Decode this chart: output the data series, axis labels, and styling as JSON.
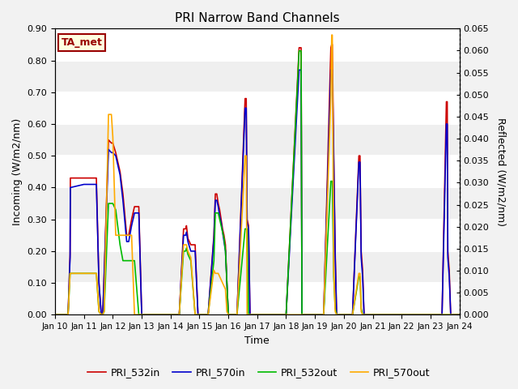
{
  "title": "PRI Narrow Band Channels",
  "xlabel": "Time",
  "ylabel_left": "Incoming (W/m2/nm)",
  "ylabel_right": "Reflected (W/m2/nm)",
  "annotation": "TA_met",
  "ylim_left": [
    0.0,
    0.9
  ],
  "ylim_right": [
    0.0,
    0.065
  ],
  "yticks_left": [
    0.0,
    0.1,
    0.2,
    0.3,
    0.4,
    0.5,
    0.6,
    0.7,
    0.8,
    0.9
  ],
  "yticks_right": [
    0.0,
    0.005,
    0.01,
    0.015,
    0.02,
    0.025,
    0.03,
    0.035,
    0.04,
    0.045,
    0.05,
    0.055,
    0.06,
    0.065
  ],
  "xtick_labels": [
    "Jan 10",
    "Jan 11",
    "Jan 12",
    "Jan 13",
    "Jan 14",
    "Jan 15",
    "Jan 16",
    "Jan 17",
    "Jan 18",
    "Jan 19",
    "Jan 20",
    "Jan 21",
    "Jan 22",
    "Jan 23",
    "Jan 24"
  ],
  "colors": {
    "PRI_532in": "#cc0000",
    "PRI_570in": "#0000cc",
    "PRI_532out": "#00bb00",
    "PRI_570out": "#ffaa00"
  },
  "fig_bg": "#f2f2f2",
  "ax_bg": "#e8e8e8",
  "band_light": "#efefef",
  "band_dark": "#dcdcdc",
  "grid_color": "#ffffff",
  "series": {
    "PRI_532in": {
      "x": [
        0.0,
        0.45,
        0.52,
        0.53,
        1.0,
        1.43,
        1.52,
        1.6,
        1.65,
        1.7,
        1.85,
        1.95,
        2.0,
        2.1,
        2.25,
        2.35,
        2.48,
        2.55,
        2.65,
        2.75,
        2.9,
        3.0,
        3.5,
        4.0,
        4.3,
        4.45,
        4.52,
        4.55,
        4.6,
        4.7,
        4.85,
        4.95,
        5.0,
        5.3,
        5.5,
        5.55,
        5.6,
        5.65,
        5.7,
        5.75,
        5.8,
        5.85,
        5.9,
        5.95,
        6.0,
        6.3,
        6.58,
        6.62,
        6.65,
        6.7,
        6.75,
        7.0,
        7.5,
        8.0,
        8.45,
        8.52,
        8.55,
        8.6,
        8.7,
        9.0,
        9.3,
        9.55,
        9.58,
        9.6,
        9.65,
        9.7,
        9.75,
        9.9,
        10.0,
        10.3,
        10.52,
        10.56,
        10.6,
        10.65,
        10.7,
        10.85,
        11.0,
        11.5,
        12.0,
        12.5,
        13.0,
        13.4,
        13.55,
        13.58,
        13.6,
        13.65,
        13.7,
        14.0
      ],
      "y": [
        0.0,
        0.0,
        0.19,
        0.43,
        0.43,
        0.43,
        0.1,
        0.0,
        0.0,
        0.13,
        0.55,
        0.54,
        0.54,
        0.51,
        0.45,
        0.38,
        0.25,
        0.25,
        0.3,
        0.34,
        0.34,
        0.0,
        0.0,
        0.0,
        0.0,
        0.27,
        0.27,
        0.28,
        0.24,
        0.22,
        0.22,
        0.0,
        0.0,
        0.0,
        0.25,
        0.38,
        0.38,
        0.35,
        0.33,
        0.3,
        0.27,
        0.25,
        0.22,
        0.1,
        0.0,
        0.0,
        0.68,
        0.68,
        0.3,
        0.28,
        0.0,
        0.0,
        0.0,
        0.0,
        0.84,
        0.84,
        0.0,
        0.0,
        0.0,
        0.0,
        0.0,
        0.84,
        0.85,
        0.85,
        0.5,
        0.2,
        0.0,
        0.0,
        0.0,
        0.0,
        0.5,
        0.5,
        0.2,
        0.14,
        0.0,
        0.0,
        0.0,
        0.0,
        0.0,
        0.0,
        0.0,
        0.0,
        0.67,
        0.67,
        0.2,
        0.14,
        0.0,
        0.0
      ]
    },
    "PRI_570in": {
      "x": [
        0.0,
        0.45,
        0.52,
        0.53,
        1.0,
        1.43,
        1.52,
        1.6,
        1.65,
        1.7,
        1.85,
        1.95,
        2.0,
        2.1,
        2.25,
        2.35,
        2.48,
        2.55,
        2.65,
        2.75,
        2.9,
        3.0,
        3.5,
        4.0,
        4.3,
        4.45,
        4.52,
        4.55,
        4.6,
        4.7,
        4.85,
        4.95,
        5.0,
        5.3,
        5.5,
        5.55,
        5.6,
        5.65,
        5.7,
        5.75,
        5.8,
        5.85,
        5.9,
        5.95,
        6.0,
        6.3,
        6.58,
        6.62,
        6.65,
        6.7,
        6.75,
        7.0,
        7.5,
        8.0,
        8.45,
        8.52,
        8.55,
        8.6,
        8.7,
        9.0,
        9.3,
        9.55,
        9.58,
        9.6,
        9.65,
        9.7,
        9.75,
        9.9,
        10.0,
        10.3,
        10.52,
        10.56,
        10.6,
        10.65,
        10.7,
        10.85,
        11.0,
        11.5,
        12.0,
        12.5,
        13.0,
        13.4,
        13.55,
        13.58,
        13.6,
        13.65,
        13.7,
        14.0
      ],
      "y": [
        0.0,
        0.0,
        0.18,
        0.4,
        0.41,
        0.41,
        0.1,
        0.0,
        0.0,
        0.12,
        0.52,
        0.51,
        0.51,
        0.5,
        0.44,
        0.36,
        0.23,
        0.23,
        0.28,
        0.32,
        0.32,
        0.0,
        0.0,
        0.0,
        0.0,
        0.25,
        0.25,
        0.26,
        0.23,
        0.2,
        0.2,
        0.0,
        0.0,
        0.0,
        0.24,
        0.36,
        0.36,
        0.34,
        0.31,
        0.29,
        0.26,
        0.23,
        0.2,
        0.1,
        0.0,
        0.0,
        0.65,
        0.65,
        0.29,
        0.27,
        0.0,
        0.0,
        0.0,
        0.0,
        0.77,
        0.77,
        0.0,
        0.0,
        0.0,
        0.0,
        0.0,
        0.77,
        0.77,
        0.77,
        0.48,
        0.18,
        0.0,
        0.0,
        0.0,
        0.0,
        0.48,
        0.48,
        0.18,
        0.12,
        0.0,
        0.0,
        0.0,
        0.0,
        0.0,
        0.0,
        0.0,
        0.0,
        0.6,
        0.6,
        0.18,
        0.12,
        0.0,
        0.0
      ]
    },
    "PRI_532out": {
      "x": [
        0.0,
        0.45,
        0.52,
        0.53,
        1.0,
        1.43,
        1.52,
        1.6,
        1.65,
        1.7,
        1.85,
        1.95,
        2.0,
        2.1,
        2.25,
        2.35,
        2.48,
        2.55,
        2.65,
        2.75,
        2.9,
        3.0,
        3.5,
        4.0,
        4.3,
        4.45,
        4.52,
        4.55,
        4.6,
        4.7,
        4.85,
        4.95,
        5.0,
        5.3,
        5.5,
        5.55,
        5.6,
        5.65,
        5.7,
        5.75,
        5.8,
        5.85,
        5.9,
        5.95,
        6.0,
        6.3,
        6.58,
        6.62,
        6.65,
        6.7,
        6.75,
        7.0,
        7.5,
        8.0,
        8.45,
        8.52,
        8.55,
        8.6,
        8.7,
        9.0,
        9.3,
        9.55,
        9.58,
        9.6,
        9.65,
        9.7,
        9.75,
        9.9,
        10.0,
        10.3,
        10.52,
        10.56,
        10.6,
        10.65,
        10.7,
        10.85,
        11.0,
        11.5,
        12.0,
        12.5,
        13.0,
        13.4,
        13.55,
        13.58,
        13.6,
        13.65,
        13.7,
        14.0
      ],
      "y": [
        0.0,
        0.0,
        0.13,
        0.13,
        0.13,
        0.13,
        0.01,
        0.0,
        0.0,
        0.01,
        0.35,
        0.35,
        0.35,
        0.33,
        0.22,
        0.17,
        0.17,
        0.17,
        0.17,
        0.17,
        0.0,
        0.0,
        0.0,
        0.0,
        0.0,
        0.2,
        0.2,
        0.21,
        0.19,
        0.17,
        0.0,
        0.0,
        0.0,
        0.0,
        0.17,
        0.32,
        0.32,
        0.32,
        0.3,
        0.28,
        0.26,
        0.24,
        0.2,
        0.1,
        0.0,
        0.0,
        0.27,
        0.27,
        0.27,
        0.0,
        0.0,
        0.0,
        0.0,
        0.0,
        0.83,
        0.83,
        0.0,
        0.0,
        0.0,
        0.0,
        0.0,
        0.42,
        0.42,
        0.42,
        0.12,
        0.02,
        0.0,
        0.0,
        0.0,
        0.0,
        0.12,
        0.12,
        0.02,
        0.0,
        0.0,
        0.0,
        0.0,
        0.0,
        0.0,
        0.0,
        0.0,
        0.0,
        0.0,
        0.0,
        0.0,
        0.0,
        0.0,
        0.0
      ]
    },
    "PRI_570out": {
      "x": [
        0.0,
        0.45,
        0.52,
        0.53,
        1.0,
        1.43,
        1.52,
        1.6,
        1.65,
        1.7,
        1.85,
        1.95,
        2.0,
        2.1,
        2.25,
        2.35,
        2.48,
        2.55,
        2.65,
        2.75,
        2.9,
        3.0,
        3.5,
        4.0,
        4.3,
        4.45,
        4.52,
        4.55,
        4.6,
        4.7,
        4.85,
        4.95,
        5.0,
        5.3,
        5.5,
        5.55,
        5.6,
        5.65,
        5.7,
        5.75,
        5.8,
        5.85,
        5.9,
        5.95,
        6.0,
        6.3,
        6.58,
        6.62,
        6.65,
        6.7,
        6.75,
        7.0,
        7.5,
        8.0,
        8.45,
        8.52,
        8.55,
        8.6,
        8.7,
        9.0,
        9.3,
        9.55,
        9.58,
        9.6,
        9.65,
        9.7,
        9.75,
        9.9,
        10.0,
        10.3,
        10.52,
        10.56,
        10.6,
        10.65,
        10.7,
        10.85,
        11.0,
        11.5,
        12.0,
        12.5,
        13.0,
        13.4,
        13.55,
        13.58,
        13.6,
        13.65,
        13.7,
        14.0
      ],
      "y": [
        0.0,
        0.0,
        0.13,
        0.13,
        0.13,
        0.13,
        0.01,
        0.0,
        0.0,
        0.01,
        0.63,
        0.63,
        0.56,
        0.25,
        0.25,
        0.25,
        0.25,
        0.25,
        0.25,
        0.0,
        0.0,
        0.0,
        0.0,
        0.0,
        0.0,
        0.22,
        0.22,
        0.22,
        0.2,
        0.18,
        0.0,
        0.0,
        0.0,
        0.0,
        0.14,
        0.13,
        0.13,
        0.13,
        0.12,
        0.11,
        0.1,
        0.09,
        0.08,
        0.01,
        0.0,
        0.0,
        0.5,
        0.5,
        0.0,
        0.0,
        0.0,
        0.0,
        0.0,
        0.0,
        0.0,
        0.0,
        0.0,
        0.0,
        0.0,
        0.0,
        0.0,
        0.69,
        0.88,
        0.88,
        0.14,
        0.01,
        0.0,
        0.0,
        0.0,
        0.0,
        0.13,
        0.13,
        0.01,
        0.0,
        0.0,
        0.0,
        0.0,
        0.0,
        0.0,
        0.0,
        0.0,
        0.0,
        0.0,
        0.0,
        0.0,
        0.0,
        0.0,
        0.0
      ]
    }
  }
}
